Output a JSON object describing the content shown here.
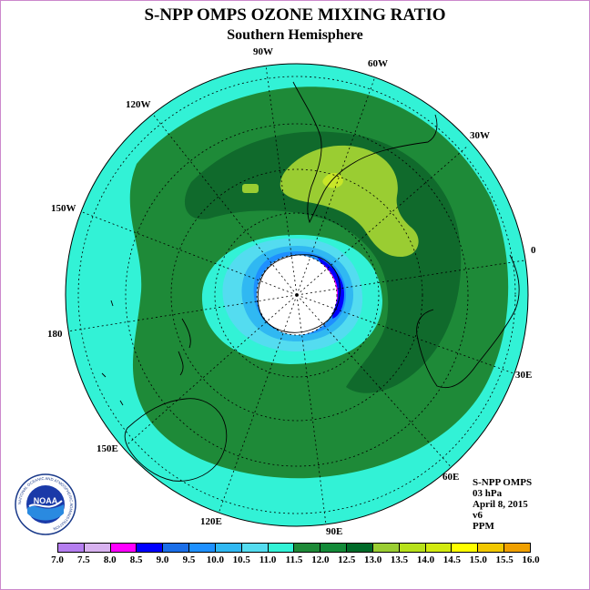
{
  "header": {
    "title": "S-NPP OMPS OZONE MIXING RATIO",
    "subtitle": "Southern Hemisphere"
  },
  "map": {
    "projection": "polar stereographic",
    "hemisphere": "south",
    "longitude_labels": {
      "90W": "90W",
      "60W": "60W",
      "30W": "30W",
      "0": "0",
      "30E": "30E",
      "60E": "60E",
      "90E": "90E",
      "120E": "120E",
      "150E": "150E",
      "180": "180",
      "150W": "150W",
      "120W": "120W"
    },
    "ocean_color": "#32f2d6"
  },
  "info": {
    "instrument": "S-NPP OMPS",
    "pressure": "03 hPa",
    "date": "April 8, 2015",
    "version": "v6",
    "units": "PPM"
  },
  "logo": {
    "text": "NOAA",
    "ring_text": "NATIONAL OCEANIC AND ATMOSPHERIC ADMINISTRATION"
  },
  "colorbar": {
    "colors": [
      "#b57ef0",
      "#d8b2f0",
      "#ff00ff",
      "#0000ff",
      "#1a6ee8",
      "#1e90ff",
      "#30b8f2",
      "#54dcf0",
      "#32f2d6",
      "#1e8a38",
      "#138a38",
      "#006a28",
      "#9acd32",
      "#b7e11a",
      "#d2ea10",
      "#ffff00",
      "#f2c800",
      "#f0a000",
      "#ff6a00",
      "#ff0000",
      "#b20000",
      "#8b5a3c"
    ],
    "labels": [
      "7.0",
      "7.5",
      "8.0",
      "8.5",
      "9.0",
      "9.5",
      "10.0",
      "10.5",
      "11.0",
      "11.5",
      "12.0",
      "12.5",
      "13.0",
      "13.5",
      "14.0",
      "14.5",
      "15.0",
      "15.5",
      "16.0"
    ]
  }
}
